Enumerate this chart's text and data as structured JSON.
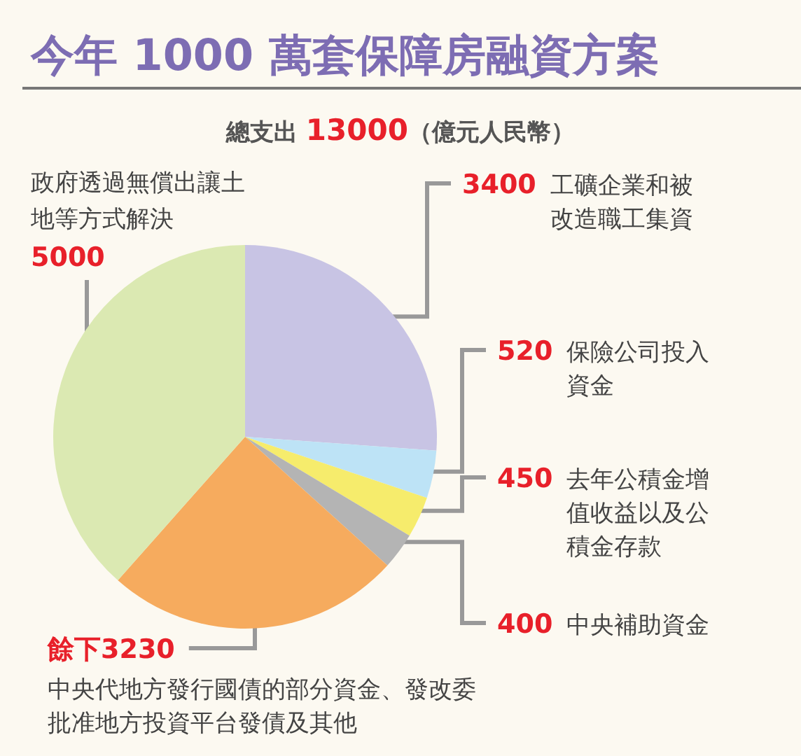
{
  "chart_data": {
    "type": "pie",
    "title": "今年 1000 萬套保障房融資方案",
    "subtitle": "總支出 13000（億元人民幣）",
    "categories": [
      "工礦企業和被改造職工集資",
      "保險公司投入資金",
      "去年公積金增值收益以及公積金存款",
      "中央補助資金",
      "中央代地方發行國債的部分資金、發改委批准地方投資平台發債及其他",
      "政府透過無償出讓土地等方式解決"
    ],
    "values": [
      3400,
      520,
      450,
      400,
      3230,
      5000
    ],
    "value_labels": [
      "3400",
      "520",
      "450",
      "400",
      "餘下3230",
      "5000"
    ],
    "colors": [
      "#c8c4e4",
      "#bde3f6",
      "#f6ec6c",
      "#b4b4b4",
      "#f6ab5e",
      "#dbe9b2"
    ],
    "legend": false
  }
}
